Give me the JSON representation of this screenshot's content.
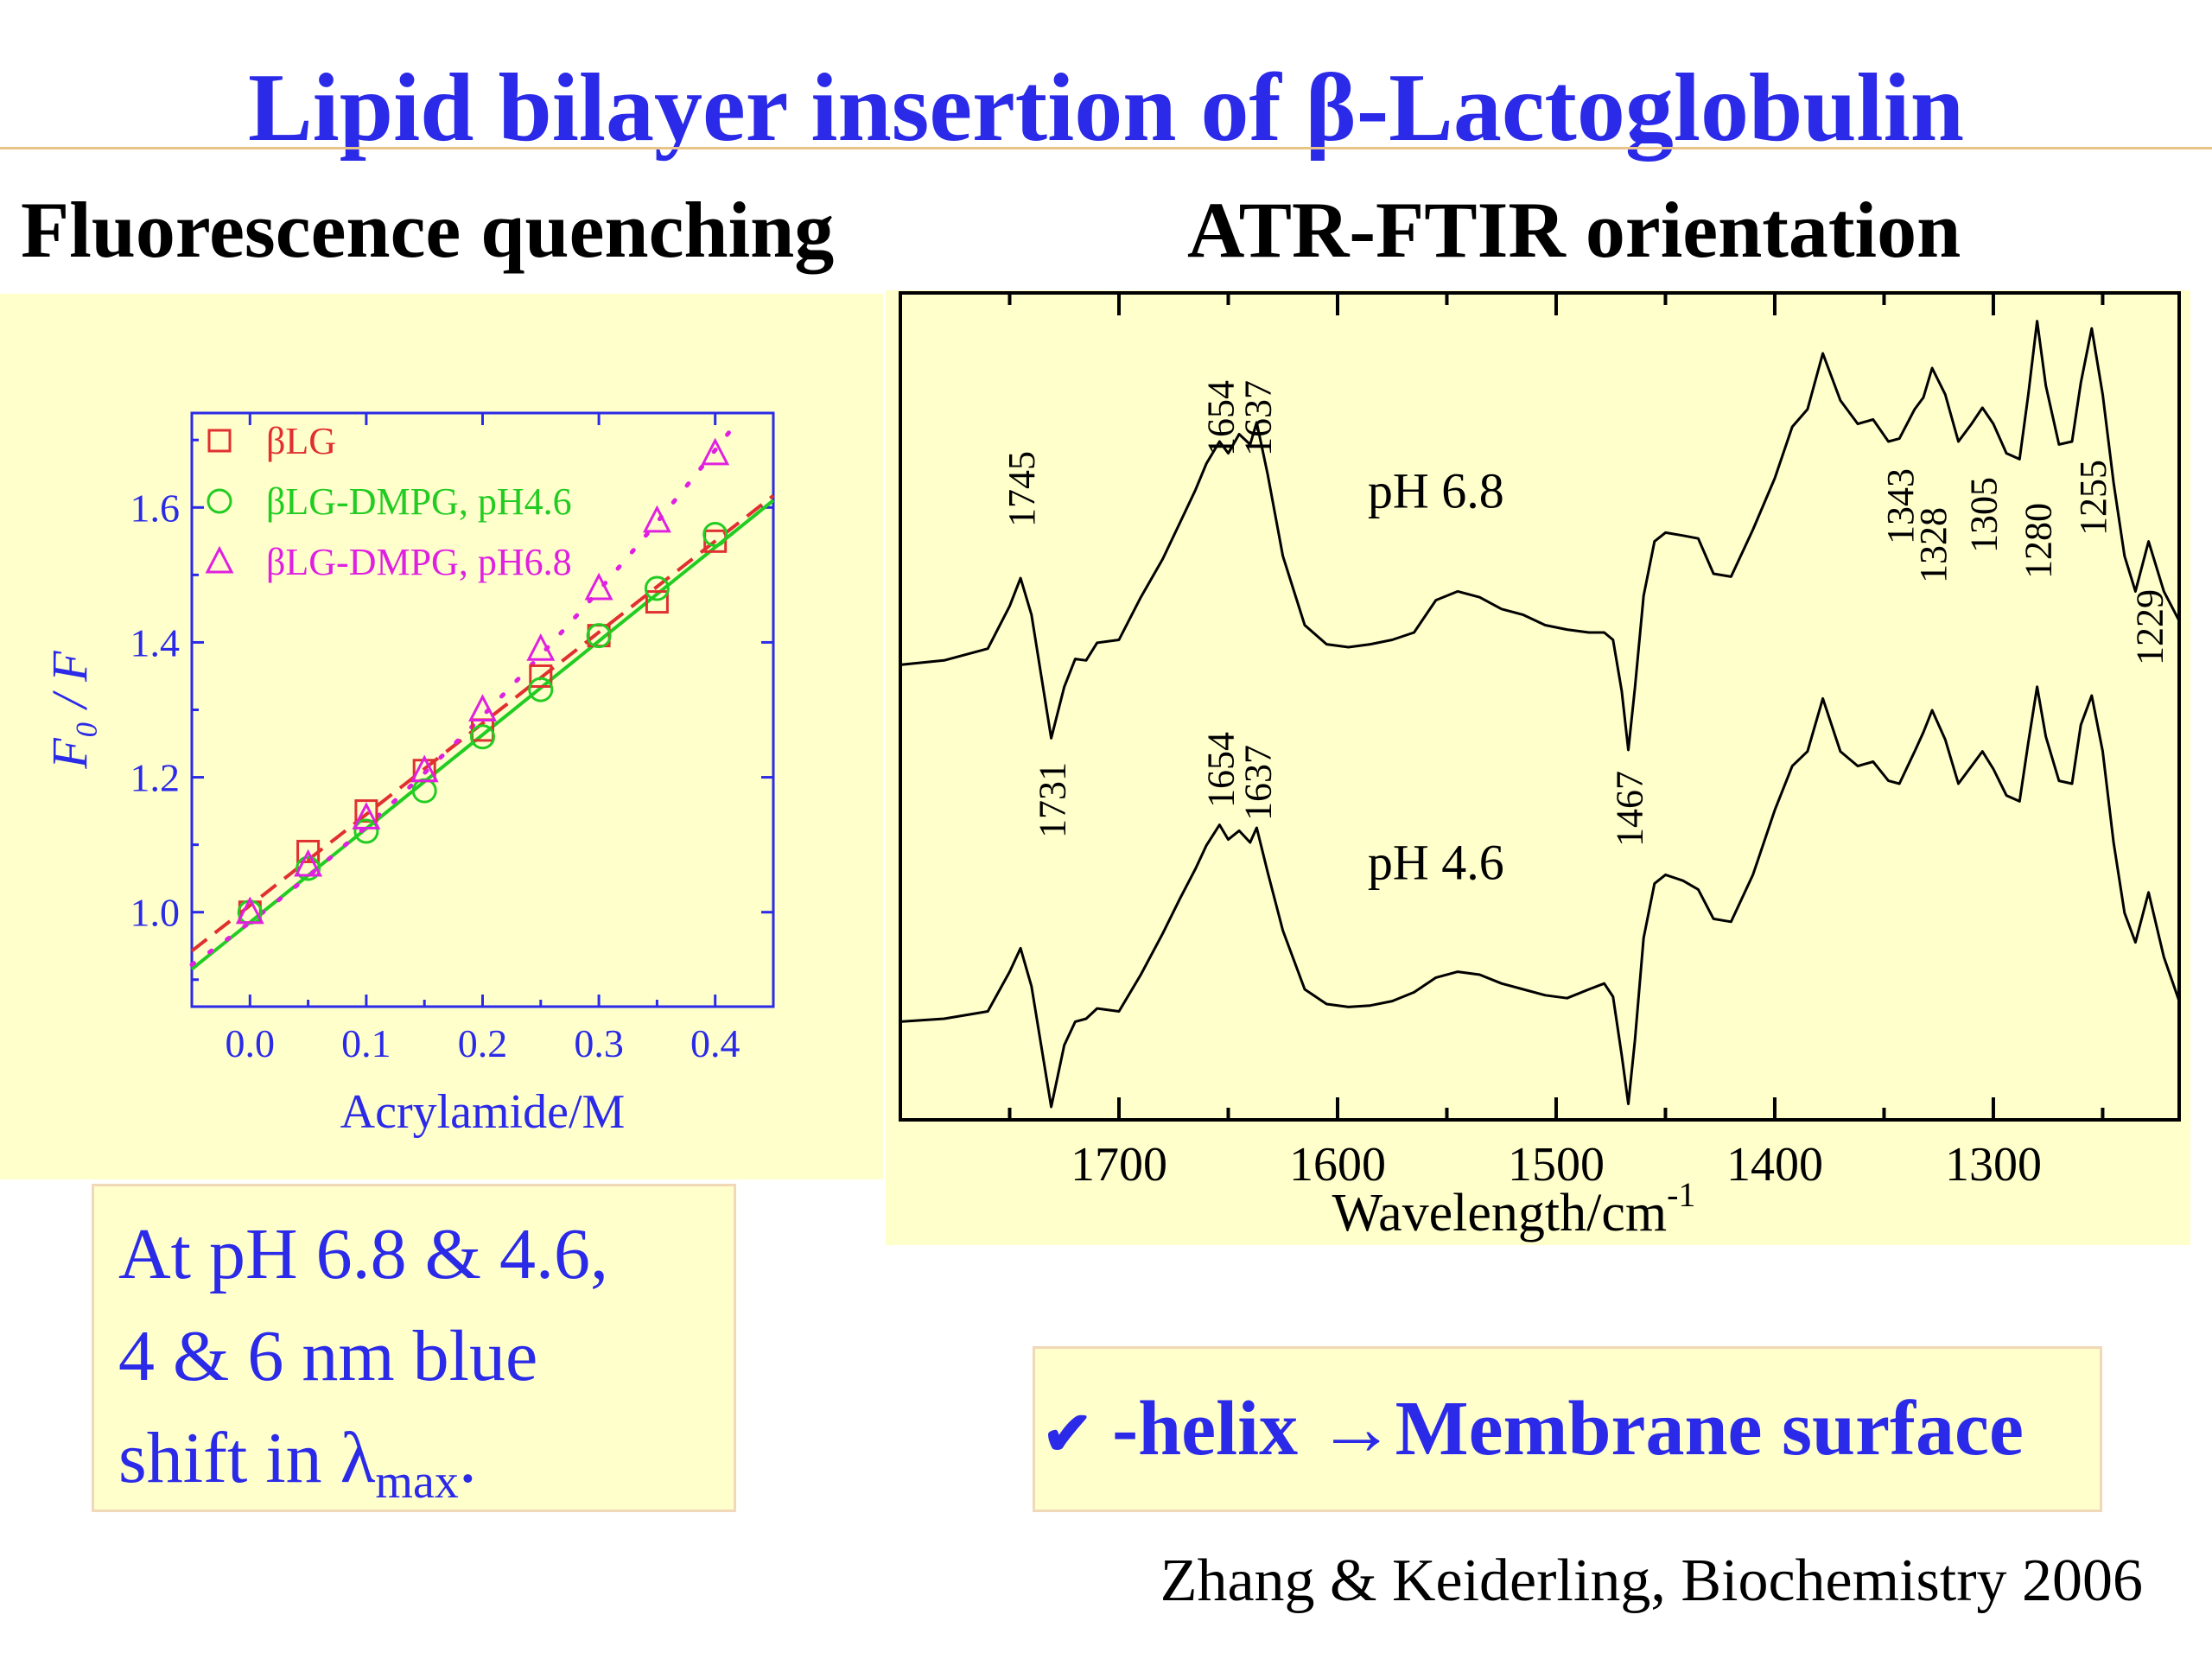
{
  "slide": {
    "title": "Lipid bilayer insertion of β-Lactoglobulin",
    "subtitle_left": "Fluorescence quenching",
    "subtitle_right": "ATR-FTIR orientation",
    "note_line1": "At pH 6.8 & 4.6,",
    "note_line2": "4 & 6 nm blue",
    "note_line3_prefix": "shift in ",
    "note_lambda": "λ",
    "note_sub": "max",
    "note_end": ".",
    "conclusion_check": "✔",
    "conclusion_helix": " -helix ",
    "conclusion_arrow": "→",
    "conclusion_rest": "Membrane surface",
    "citation": "Zhang & Keiderling, Biochemistry 2006"
  },
  "chart_data": [
    {
      "type": "scatter",
      "xlabel": "Acrylamide/M",
      "ylabel": "F₀ / F",
      "xlim": [
        -0.05,
        0.45
      ],
      "ylim": [
        0.86,
        1.74
      ],
      "xticks": [
        "0.0",
        "0.1",
        "0.2",
        "0.3",
        "0.4"
      ],
      "yticks": [
        "1.0",
        "1.2",
        "1.4",
        "1.6"
      ],
      "legend_position": "top-left",
      "series": [
        {
          "name": "βLG",
          "marker": "square",
          "color": "#e03030",
          "fit": "dashed",
          "x": [
            0.0,
            0.05,
            0.1,
            0.15,
            0.2,
            0.25,
            0.3,
            0.35,
            0.4
          ],
          "y": [
            1.0,
            1.09,
            1.15,
            1.21,
            1.27,
            1.35,
            1.41,
            1.46,
            1.55
          ],
          "fit_line": {
            "slope": 1.35,
            "intercept": 1.01
          }
        },
        {
          "name": "βLG-DMPG, pH4.6",
          "marker": "circle",
          "color": "#22cc22",
          "fit": "solid",
          "x": [
            0.0,
            0.05,
            0.1,
            0.15,
            0.2,
            0.25,
            0.3,
            0.35,
            0.4
          ],
          "y": [
            1.0,
            1.065,
            1.12,
            1.18,
            1.26,
            1.33,
            1.41,
            1.48,
            1.56
          ],
          "fit_line": {
            "slope": 1.39,
            "intercept": 0.985
          }
        },
        {
          "name": "βLG-DMPG, pH6.8",
          "marker": "triangle",
          "color": "#e020e0",
          "fit": "dotted",
          "x": [
            0.0,
            0.05,
            0.1,
            0.15,
            0.2,
            0.25,
            0.3,
            0.35,
            0.4
          ],
          "y": [
            1.0,
            1.07,
            1.14,
            1.21,
            1.3,
            1.39,
            1.48,
            1.58,
            1.68
          ],
          "fit_line": {
            "a": 0.985,
            "b": 1.31,
            "c": 1.1
          }
        }
      ]
    },
    {
      "type": "line",
      "xlabel": "Wavelength/cm",
      "xlabel_sup": "-1",
      "xlim": [
        1800,
        1215
      ],
      "xticks": [
        "1700",
        "1600",
        "1500",
        "1400",
        "1300"
      ],
      "series": [
        {
          "name": "pH 6.8",
          "x": [
            1800,
            1780,
            1760,
            1750,
            1745,
            1740,
            1731,
            1725,
            1720,
            1715,
            1710,
            1700,
            1690,
            1680,
            1672,
            1665,
            1660,
            1654,
            1650,
            1645,
            1640,
            1637,
            1632,
            1625,
            1615,
            1605,
            1595,
            1585,
            1575,
            1565,
            1555,
            1545,
            1535,
            1525,
            1515,
            1505,
            1495,
            1485,
            1478,
            1474,
            1470,
            1467,
            1464,
            1460,
            1455,
            1450,
            1442,
            1435,
            1428,
            1420,
            1410,
            1400,
            1392,
            1385,
            1378,
            1370,
            1362,
            1355,
            1348,
            1343,
            1336,
            1332,
            1328,
            1322,
            1316,
            1310,
            1305,
            1300,
            1294,
            1288,
            1284,
            1280,
            1276,
            1270,
            1264,
            1260,
            1255,
            1250,
            1245,
            1240,
            1235,
            1229,
            1222,
            1215
          ],
          "y": [
            -0.02,
            0.01,
            0.09,
            0.38,
            0.57,
            0.32,
            -0.52,
            -0.17,
            0.02,
            0.01,
            0.13,
            0.15,
            0.44,
            0.7,
            0.95,
            1.17,
            1.35,
            1.5,
            1.42,
            1.55,
            1.48,
            1.63,
            1.28,
            0.72,
            0.25,
            0.12,
            0.1,
            0.12,
            0.15,
            0.2,
            0.42,
            0.48,
            0.44,
            0.36,
            0.32,
            0.25,
            0.22,
            0.2,
            0.2,
            0.15,
            -0.2,
            -0.6,
            -0.18,
            0.45,
            0.82,
            0.88,
            0.86,
            0.84,
            0.6,
            0.58,
            0.9,
            1.25,
            1.6,
            1.72,
            2.1,
            1.78,
            1.62,
            1.65,
            1.5,
            1.52,
            1.72,
            1.8,
            2.0,
            1.82,
            1.5,
            1.62,
            1.73,
            1.62,
            1.42,
            1.38,
            1.82,
            2.32,
            1.88,
            1.48,
            1.5,
            1.9,
            2.27,
            1.82,
            1.22,
            0.72,
            0.48,
            0.82,
            0.48,
            0.28
          ]
        },
        {
          "name": "pH 4.6",
          "x": [
            1800,
            1780,
            1760,
            1750,
            1745,
            1740,
            1731,
            1725,
            1720,
            1715,
            1710,
            1700,
            1690,
            1680,
            1672,
            1665,
            1660,
            1654,
            1650,
            1645,
            1640,
            1637,
            1632,
            1625,
            1615,
            1605,
            1595,
            1585,
            1575,
            1565,
            1555,
            1545,
            1535,
            1525,
            1515,
            1505,
            1495,
            1485,
            1478,
            1474,
            1470,
            1467,
            1464,
            1460,
            1455,
            1450,
            1442,
            1435,
            1428,
            1420,
            1410,
            1400,
            1392,
            1385,
            1378,
            1370,
            1362,
            1355,
            1348,
            1343,
            1336,
            1332,
            1328,
            1322,
            1316,
            1310,
            1305,
            1300,
            1294,
            1288,
            1284,
            1280,
            1276,
            1270,
            1264,
            1260,
            1255,
            1250,
            1245,
            1240,
            1235,
            1229,
            1222,
            1215
          ],
          "y": [
            -0.02,
            0.0,
            0.05,
            0.32,
            0.48,
            0.22,
            -0.6,
            -0.18,
            -0.02,
            0.0,
            0.07,
            0.05,
            0.3,
            0.58,
            0.82,
            1.02,
            1.18,
            1.32,
            1.22,
            1.28,
            1.2,
            1.3,
            1.0,
            0.6,
            0.2,
            0.1,
            0.08,
            0.09,
            0.12,
            0.18,
            0.28,
            0.32,
            0.3,
            0.24,
            0.2,
            0.16,
            0.14,
            0.2,
            0.24,
            0.15,
            -0.25,
            -0.58,
            -0.15,
            0.55,
            0.92,
            0.98,
            0.94,
            0.88,
            0.68,
            0.66,
            0.98,
            1.42,
            1.72,
            1.82,
            2.18,
            1.82,
            1.72,
            1.75,
            1.62,
            1.6,
            1.82,
            1.95,
            2.1,
            1.9,
            1.6,
            1.72,
            1.82,
            1.7,
            1.52,
            1.48,
            1.88,
            2.26,
            1.92,
            1.62,
            1.6,
            2.0,
            2.2,
            1.82,
            1.2,
            0.72,
            0.52,
            0.86,
            0.42,
            0.12
          ]
        }
      ],
      "labels": [
        {
          "series": 0,
          "text": "1745"
        },
        {
          "series": 0,
          "text": "1654"
        },
        {
          "series": 0,
          "text": "1637"
        },
        {
          "series": 0,
          "text": "1343"
        },
        {
          "series": 0,
          "text": "1328"
        },
        {
          "series": 0,
          "text": "1305"
        },
        {
          "series": 0,
          "text": "1280"
        },
        {
          "series": 0,
          "text": "1255"
        },
        {
          "series": 0,
          "text": "1229"
        },
        {
          "series": 1,
          "text": "1731"
        },
        {
          "series": 1,
          "text": "1654"
        },
        {
          "series": 1,
          "text": "1637"
        },
        {
          "series": 1,
          "text": "1467"
        }
      ]
    }
  ]
}
